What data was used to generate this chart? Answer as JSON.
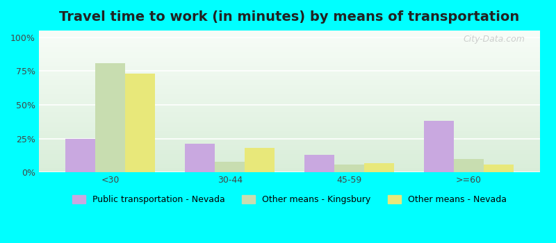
{
  "title": "Travel time to work (in minutes) by means of transportation",
  "categories": [
    "<30",
    "30-44",
    "45-59",
    ">=60"
  ],
  "series": {
    "Public transportation - Nevada": [
      25,
      21,
      13,
      38
    ],
    "Other means - Kingsbury": [
      81,
      8,
      6,
      10
    ],
    "Other means - Nevada": [
      73,
      18,
      7,
      6
    ]
  },
  "colors": {
    "Public transportation - Nevada": "#c9a8e0",
    "Other means - Kingsbury": "#c8ddb0",
    "Other means - Nevada": "#e8e87a"
  },
  "yticks": [
    0,
    25,
    50,
    75,
    100
  ],
  "ytick_labels": [
    "0%",
    "25%",
    "50%",
    "75%",
    "100%"
  ],
  "ylim": [
    0,
    105
  ],
  "background_color": "#00ffff",
  "plot_bg_gradient_top": "#e8f4e8",
  "plot_bg_gradient_bottom": "#f0faf0",
  "bar_width": 0.25,
  "title_fontsize": 14,
  "legend_fontsize": 9,
  "tick_fontsize": 9,
  "watermark": "City-Data.com"
}
